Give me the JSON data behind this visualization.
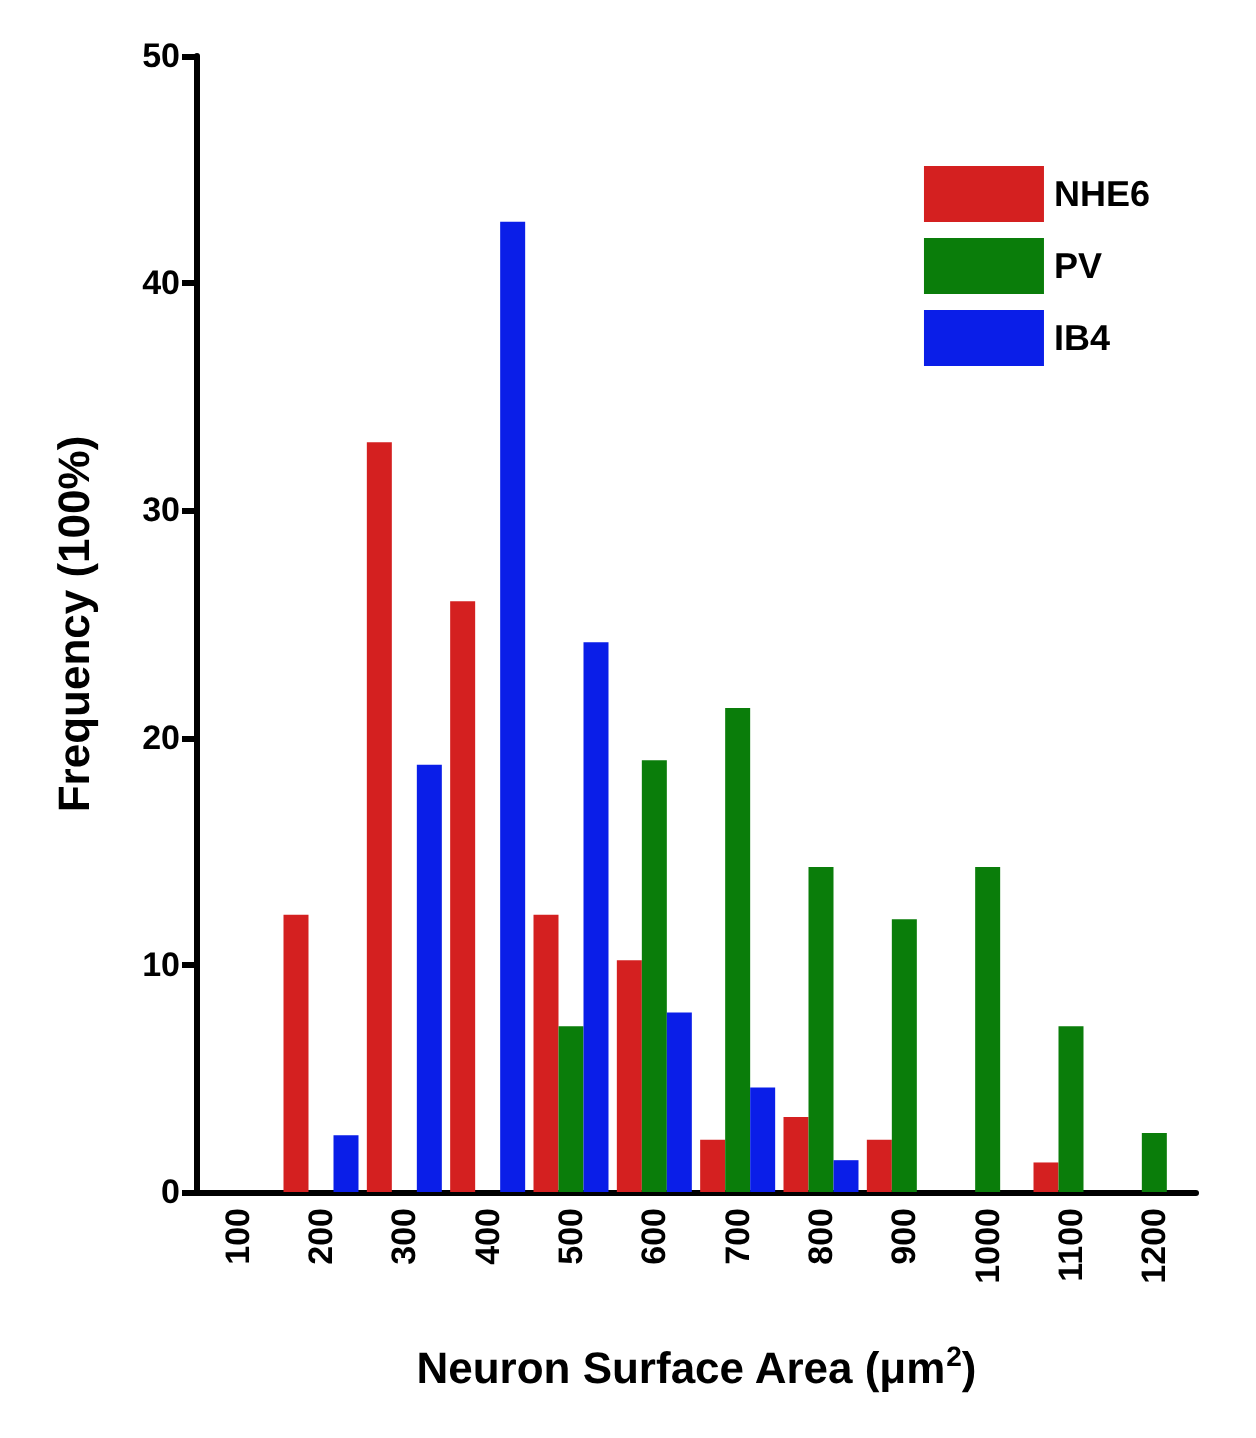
{
  "chart_data": {
    "type": "bar",
    "xlabel": "Neuron Surface Area (μm$^{2}$)",
    "ylabel": "Frequency (100%)",
    "categories": [
      "100",
      "200",
      "300",
      "400",
      "500",
      "600",
      "700",
      "800",
      "900",
      "1000",
      "1100",
      "1200"
    ],
    "series": [
      {
        "name": "NHE6",
        "color": "#d42020",
        "values": [
          null,
          12.2,
          33,
          26,
          12.2,
          10.2,
          2.3,
          3.3,
          2.3,
          null,
          1.3,
          null
        ]
      },
      {
        "name": "PV",
        "color": "#0a7d0a",
        "values": [
          null,
          null,
          null,
          null,
          7.3,
          19,
          21.3,
          14.3,
          12,
          14.3,
          7.3,
          2.6
        ]
      },
      {
        "name": "IB4",
        "color": "#0a1ee8",
        "values": [
          null,
          2.5,
          18.8,
          42.7,
          24.2,
          7.9,
          4.6,
          1.4,
          null,
          null,
          null,
          null
        ]
      }
    ],
    "ylim": [
      0,
      50
    ],
    "yticks": [
      0,
      10,
      20,
      30,
      40,
      50
    ],
    "grid": false,
    "legend": "top right"
  }
}
